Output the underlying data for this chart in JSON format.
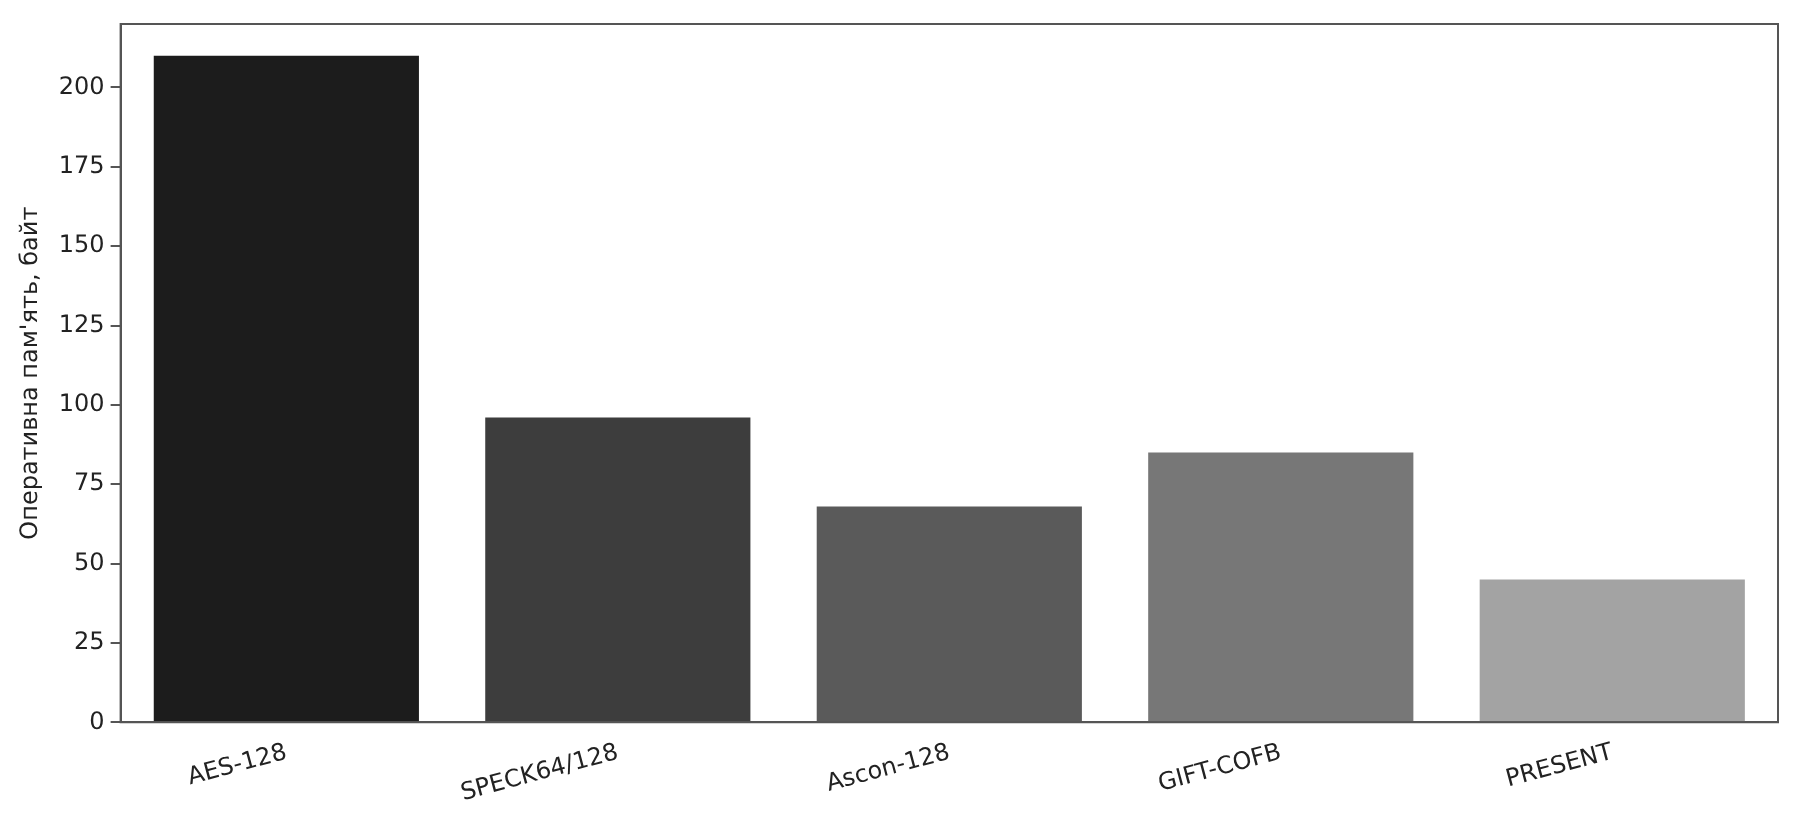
{
  "chart_data": {
    "type": "bar",
    "ylabel": "Оперативна пам'ять, байт",
    "categories": [
      "AES-128",
      "SPECK64/128",
      "Ascon-128",
      "GIFT-COFB",
      "PRESENT"
    ],
    "values": [
      210,
      96,
      68,
      85,
      45
    ],
    "colors": [
      "#1c1c1c",
      "#3d3d3d",
      "#5a5a5a",
      "#777777",
      "#a3a3a3"
    ],
    "ylim": [
      0,
      220
    ],
    "yticks": [
      0,
      25,
      50,
      75,
      100,
      125,
      150,
      175,
      200
    ],
    "grid": false,
    "legend": false
  }
}
